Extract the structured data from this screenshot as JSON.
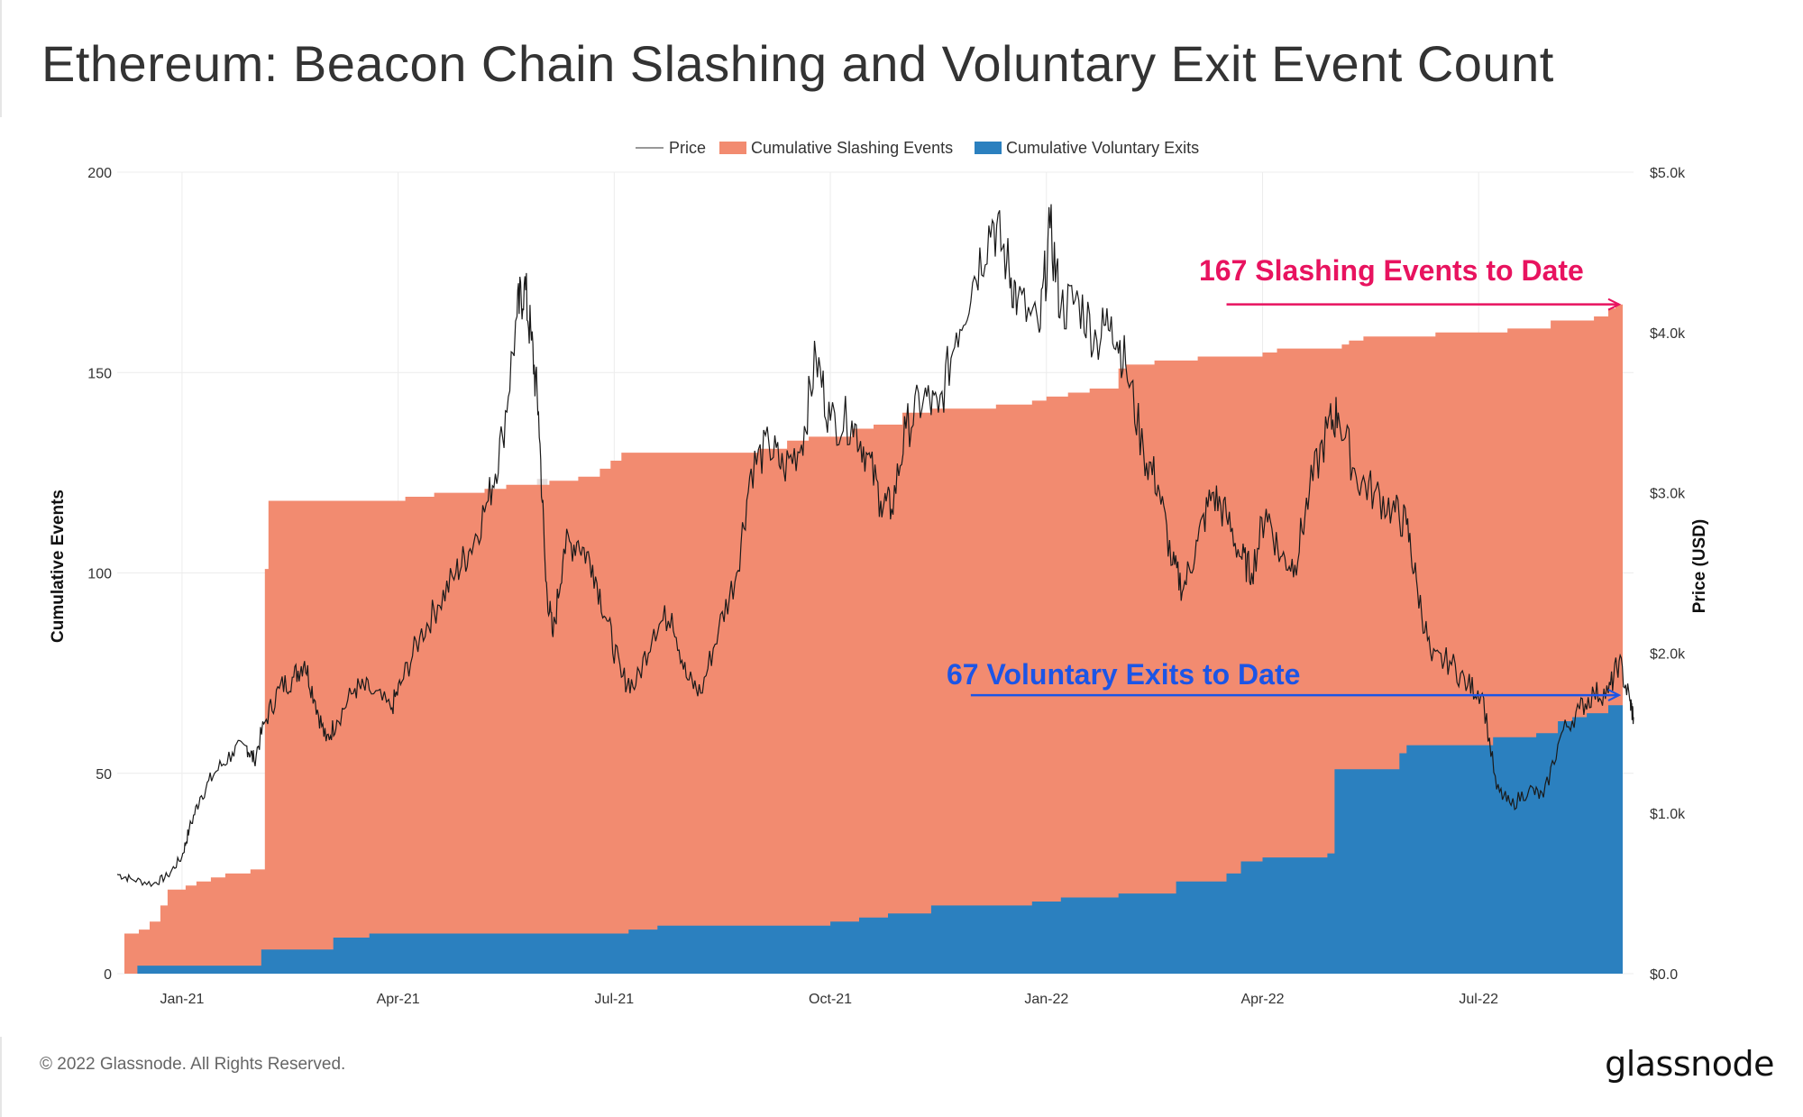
{
  "title": "Ethereum: Beacon Chain Slashing and Voluntary Exit Event Count",
  "footer": {
    "copyright": "© 2022 Glassnode. All Rights Reserved.",
    "logo": "glassnode"
  },
  "colors": {
    "slashing": "#f28b70",
    "exits": "#2b80bf",
    "price": "#1a1a1a",
    "anno_red": "#e8135f",
    "anno_blue": "#1c55e6"
  },
  "chart_data": {
    "type": "area",
    "watermark": "glassnode",
    "legend": [
      "Price",
      "Cumulative Slashing Events",
      "Cumulative Voluntary Exits"
    ],
    "x_tick_labels": [
      "Jan-21",
      "Apr-21",
      "Jul-21",
      "Oct-21",
      "Jan-22",
      "Apr-22",
      "Jul-22"
    ],
    "x_range_months": [
      -0.9,
      20.15
    ],
    "y_left": {
      "label": "Cumulative Events",
      "range": [
        0,
        200
      ],
      "ticks": [
        "0",
        "50",
        "100",
        "150",
        "200"
      ]
    },
    "y_right": {
      "label": "Price (USD)",
      "range": [
        0,
        5000
      ],
      "ticks": [
        "$0.0",
        "$1.0k",
        "$2.0k",
        "$3.0k",
        "$4.0k",
        "$5.0k"
      ]
    },
    "series": [
      {
        "name": "Cumulative Slashing Events",
        "steps": [
          [
            -0.9,
            0
          ],
          [
            -0.8,
            10
          ],
          [
            -0.6,
            11
          ],
          [
            -0.45,
            13
          ],
          [
            -0.3,
            17
          ],
          [
            -0.2,
            21
          ],
          [
            0.05,
            22
          ],
          [
            0.2,
            23
          ],
          [
            0.4,
            24
          ],
          [
            0.6,
            25
          ],
          [
            0.95,
            26
          ],
          [
            1.15,
            101
          ],
          [
            1.2,
            118
          ],
          [
            2.3,
            118
          ],
          [
            3.1,
            119
          ],
          [
            3.5,
            120
          ],
          [
            4.2,
            121
          ],
          [
            4.5,
            122
          ],
          [
            5.1,
            123
          ],
          [
            5.5,
            124
          ],
          [
            5.8,
            126
          ],
          [
            5.95,
            128
          ],
          [
            6.1,
            130
          ],
          [
            7.8,
            130
          ],
          [
            8.0,
            131
          ],
          [
            8.4,
            133
          ],
          [
            8.7,
            134
          ],
          [
            9.3,
            136
          ],
          [
            9.6,
            137
          ],
          [
            10.0,
            140
          ],
          [
            10.4,
            141
          ],
          [
            11.3,
            142
          ],
          [
            11.8,
            143
          ],
          [
            12.0,
            144
          ],
          [
            12.3,
            145
          ],
          [
            12.6,
            146
          ],
          [
            13.0,
            151
          ],
          [
            13.1,
            152
          ],
          [
            13.5,
            153
          ],
          [
            14.1,
            154
          ],
          [
            15.0,
            155
          ],
          [
            15.2,
            156
          ],
          [
            16.1,
            157
          ],
          [
            16.2,
            158
          ],
          [
            16.4,
            159
          ],
          [
            17.4,
            160
          ],
          [
            18.4,
            161
          ],
          [
            19.0,
            163
          ],
          [
            19.6,
            164
          ],
          [
            19.8,
            166
          ],
          [
            19.9,
            167
          ],
          [
            20.0,
            167
          ]
        ]
      },
      {
        "name": "Cumulative Voluntary Exits",
        "steps": [
          [
            -0.9,
            0
          ],
          [
            -0.62,
            2
          ],
          [
            1.1,
            6
          ],
          [
            2.1,
            9
          ],
          [
            2.6,
            10
          ],
          [
            6.2,
            11
          ],
          [
            6.6,
            12
          ],
          [
            9.0,
            13
          ],
          [
            9.4,
            14
          ],
          [
            9.8,
            15
          ],
          [
            10.4,
            17
          ],
          [
            11.8,
            18
          ],
          [
            12.2,
            19
          ],
          [
            13.0,
            20
          ],
          [
            13.8,
            23
          ],
          [
            14.5,
            25
          ],
          [
            14.7,
            28
          ],
          [
            15.0,
            29
          ],
          [
            15.9,
            30
          ],
          [
            16.0,
            51
          ],
          [
            16.9,
            55
          ],
          [
            17.0,
            57
          ],
          [
            18.2,
            59
          ],
          [
            18.8,
            60
          ],
          [
            19.1,
            63
          ],
          [
            19.3,
            64
          ],
          [
            19.5,
            65
          ],
          [
            19.8,
            67
          ],
          [
            20.0,
            67
          ]
        ]
      },
      {
        "name": "Price",
        "unit": "USD",
        "points": [
          [
            -0.9,
            620
          ],
          [
            -0.7,
            590
          ],
          [
            -0.4,
            560
          ],
          [
            -0.2,
            610
          ],
          [
            0.0,
            730
          ],
          [
            0.1,
            900
          ],
          [
            0.25,
            1100
          ],
          [
            0.45,
            1250
          ],
          [
            0.7,
            1380
          ],
          [
            0.9,
            1420
          ],
          [
            1.0,
            1330
          ],
          [
            1.15,
            1570
          ],
          [
            1.35,
            1780
          ],
          [
            1.55,
            1850
          ],
          [
            1.7,
            1950
          ],
          [
            1.85,
            1700
          ],
          [
            2.0,
            1450
          ],
          [
            2.15,
            1580
          ],
          [
            2.4,
            1780
          ],
          [
            2.6,
            1770
          ],
          [
            2.9,
            1650
          ],
          [
            3.05,
            1820
          ],
          [
            3.3,
            2100
          ],
          [
            3.55,
            2300
          ],
          [
            3.8,
            2500
          ],
          [
            4.0,
            2650
          ],
          [
            4.25,
            2950
          ],
          [
            4.45,
            3350
          ],
          [
            4.65,
            4100
          ],
          [
            4.75,
            4300
          ],
          [
            4.85,
            3950
          ],
          [
            4.95,
            3500
          ],
          [
            5.05,
            2450
          ],
          [
            5.15,
            2100
          ],
          [
            5.3,
            2650
          ],
          [
            5.5,
            2700
          ],
          [
            5.7,
            2550
          ],
          [
            5.9,
            2200
          ],
          [
            6.1,
            1850
          ],
          [
            6.3,
            1800
          ],
          [
            6.55,
            2150
          ],
          [
            6.8,
            2250
          ],
          [
            7.0,
            1850
          ],
          [
            7.2,
            1750
          ],
          [
            7.45,
            2150
          ],
          [
            7.7,
            2500
          ],
          [
            7.9,
            3150
          ],
          [
            8.15,
            3300
          ],
          [
            8.35,
            3150
          ],
          [
            8.6,
            3300
          ],
          [
            8.8,
            3850
          ],
          [
            9.0,
            3450
          ],
          [
            9.3,
            3450
          ],
          [
            9.5,
            3250
          ],
          [
            9.7,
            2950
          ],
          [
            9.85,
            2900
          ],
          [
            10.05,
            3400
          ],
          [
            10.3,
            3600
          ],
          [
            10.5,
            3500
          ],
          [
            10.75,
            4000
          ],
          [
            11.0,
            4350
          ],
          [
            11.25,
            4700
          ],
          [
            11.45,
            4450
          ],
          [
            11.6,
            4200
          ],
          [
            11.9,
            4000
          ],
          [
            12.05,
            4650
          ],
          [
            12.2,
            4150
          ],
          [
            12.45,
            4200
          ],
          [
            12.7,
            3950
          ],
          [
            12.9,
            4100
          ],
          [
            13.1,
            3800
          ],
          [
            13.35,
            3250
          ],
          [
            13.55,
            3050
          ],
          [
            13.75,
            2550
          ],
          [
            13.9,
            2400
          ],
          [
            14.1,
            2700
          ],
          [
            14.3,
            3000
          ],
          [
            14.5,
            2850
          ],
          [
            14.7,
            2600
          ],
          [
            14.85,
            2500
          ],
          [
            15.05,
            2900
          ],
          [
            15.25,
            2600
          ],
          [
            15.45,
            2550
          ],
          [
            15.65,
            3000
          ],
          [
            15.9,
            3400
          ],
          [
            16.05,
            3500
          ],
          [
            16.3,
            3100
          ],
          [
            16.55,
            3000
          ],
          [
            16.8,
            2900
          ],
          [
            17.0,
            2800
          ],
          [
            17.15,
            2400
          ],
          [
            17.35,
            1950
          ],
          [
            17.6,
            1950
          ],
          [
            17.85,
            1800
          ],
          [
            18.05,
            1750
          ],
          [
            18.25,
            1150
          ],
          [
            18.45,
            1050
          ],
          [
            18.7,
            1150
          ],
          [
            18.9,
            1100
          ],
          [
            19.15,
            1500
          ],
          [
            19.4,
            1650
          ],
          [
            19.6,
            1750
          ],
          [
            19.8,
            1750
          ],
          [
            19.95,
            1950
          ],
          [
            20.1,
            1700
          ],
          [
            20.15,
            1600
          ]
        ]
      }
    ],
    "annotations": [
      {
        "text": "167 Slashing Events to Date",
        "color": "anno_red",
        "x_start_month": 14.5,
        "x_end_month": 19.95,
        "y_events": 167
      },
      {
        "text": "67 Voluntary Exits to Date",
        "color": "anno_blue",
        "x_start_month": 10.95,
        "x_end_month": 19.95,
        "y_events": 69.5
      }
    ]
  }
}
